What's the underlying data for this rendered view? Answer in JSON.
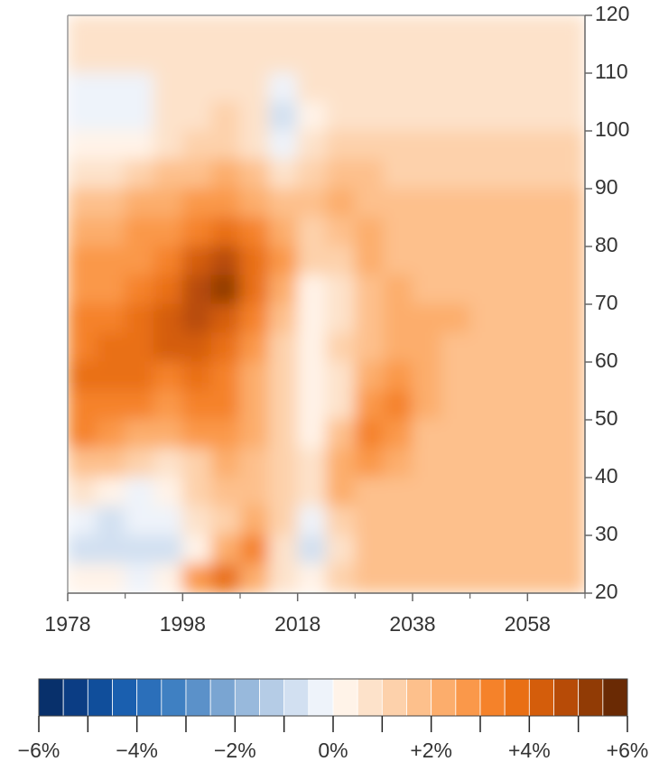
{
  "chart_data": {
    "type": "contour",
    "x": [
      1980.5,
      1985.5,
      1990.5,
      1995.5,
      2000.5,
      2005.5,
      2010.5,
      2015.5,
      2020.5,
      2025.5,
      2030.5,
      2035.5,
      2040.5,
      2045.5,
      2050.5,
      2055.5,
      2060.5,
      2065.5
    ],
    "y": [
      117.5,
      112.5,
      107.5,
      102.5,
      97.5,
      92.5,
      87.5,
      82.5,
      77.5,
      72.5,
      67.5,
      62.5,
      57.5,
      52.5,
      47.5,
      42.5,
      37.5,
      32.5,
      27.5,
      22.5
    ],
    "z": [
      [
        0.7,
        0.7,
        0.7,
        0.7,
        0.7,
        0.7,
        0.7,
        0.7,
        0.7,
        0.7,
        0.7,
        0.7,
        0.7,
        0.7,
        0.7,
        0.7,
        0.7,
        0.7
      ],
      [
        0.7,
        0.7,
        0.7,
        0.7,
        0.7,
        0.7,
        0.7,
        0.7,
        0.7,
        0.7,
        0.7,
        0.7,
        0.7,
        0.7,
        0.7,
        0.7,
        0.7,
        0.7
      ],
      [
        -0.3,
        -0.3,
        -0.3,
        0.6,
        0.7,
        0.7,
        0.7,
        -0.3,
        0.7,
        0.7,
        0.7,
        0.7,
        0.7,
        0.7,
        0.7,
        0.7,
        0.7,
        0.7
      ],
      [
        -0.3,
        -0.3,
        -0.3,
        0.5,
        0.7,
        1.2,
        0.8,
        -0.8,
        0.4,
        0.7,
        0.7,
        0.7,
        0.7,
        0.7,
        0.7,
        0.7,
        0.7,
        0.7
      ],
      [
        0.2,
        0.2,
        0.3,
        0.5,
        1.2,
        1.4,
        0.9,
        -0.2,
        0.9,
        1.2,
        1.2,
        1.2,
        1.2,
        1.2,
        1.2,
        1.2,
        1.2,
        1.2
      ],
      [
        0.5,
        0.7,
        1.2,
        1.5,
        1.8,
        2.0,
        1.6,
        0.8,
        1.3,
        1.7,
        1.5,
        1.4,
        1.3,
        1.2,
        1.2,
        1.2,
        1.2,
        1.2
      ],
      [
        1.6,
        1.8,
        2.0,
        2.3,
        2.6,
        2.8,
        2.4,
        1.6,
        1.5,
        2.0,
        1.7,
        1.5,
        1.7,
        1.7,
        1.7,
        1.7,
        1.7,
        1.7
      ],
      [
        2.0,
        2.2,
        2.5,
        2.8,
        3.3,
        3.6,
        3.0,
        2.2,
        1.4,
        1.6,
        2.1,
        1.7,
        1.7,
        1.7,
        1.7,
        1.7,
        1.7,
        1.7
      ],
      [
        2.6,
        2.7,
        2.9,
        3.3,
        4.2,
        4.6,
        3.6,
        2.6,
        1.0,
        1.2,
        2.2,
        1.8,
        1.7,
        1.7,
        1.7,
        1.7,
        1.7,
        1.7
      ],
      [
        2.8,
        2.9,
        3.1,
        3.6,
        4.6,
        5.1,
        3.6,
        2.4,
        0.3,
        0.6,
        1.8,
        2.0,
        1.8,
        1.9,
        1.7,
        1.7,
        1.7,
        1.7
      ],
      [
        3.0,
        3.2,
        3.5,
        4.0,
        4.7,
        4.4,
        3.2,
        1.8,
        0.2,
        0.6,
        1.6,
        2.2,
        2.2,
        2.1,
        1.7,
        1.7,
        1.7,
        1.7
      ],
      [
        3.2,
        3.5,
        3.8,
        4.2,
        4.3,
        3.8,
        2.8,
        1.2,
        0.3,
        1.0,
        1.8,
        2.4,
        2.3,
        1.9,
        1.7,
        1.7,
        1.7,
        1.7
      ],
      [
        3.6,
        3.8,
        3.6,
        3.4,
        3.6,
        3.4,
        2.4,
        1.0,
        0.2,
        0.6,
        2.0,
        2.7,
        2.4,
        1.8,
        1.7,
        1.7,
        1.7,
        1.7
      ],
      [
        3.4,
        3.3,
        3.0,
        2.6,
        3.2,
        3.0,
        2.2,
        1.2,
        0.2,
        0.8,
        2.6,
        3.2,
        2.2,
        1.7,
        1.7,
        1.7,
        1.7,
        1.7
      ],
      [
        3.0,
        2.6,
        2.2,
        2.0,
        2.6,
        2.6,
        2.0,
        1.2,
        0.4,
        1.8,
        3.2,
        2.8,
        1.9,
        1.7,
        1.7,
        1.7,
        1.7,
        1.7
      ],
      [
        1.8,
        1.6,
        1.0,
        0.5,
        1.4,
        2.0,
        1.8,
        1.0,
        0.6,
        2.2,
        2.7,
        2.2,
        1.7,
        1.7,
        1.7,
        1.7,
        1.7,
        1.7
      ],
      [
        0.6,
        0.3,
        -0.2,
        0.3,
        1.0,
        1.6,
        1.8,
        1.2,
        0.9,
        2.0,
        1.9,
        1.7,
        1.7,
        1.7,
        1.7,
        1.7,
        1.7,
        1.7
      ],
      [
        -0.3,
        -0.8,
        -0.5,
        -0.3,
        0.5,
        1.4,
        2.2,
        1.0,
        -0.3,
        1.2,
        1.6,
        1.7,
        1.7,
        1.7,
        1.7,
        1.7,
        1.7,
        1.7
      ],
      [
        -0.6,
        -0.6,
        -0.8,
        -0.9,
        0.2,
        2.2,
        3.0,
        0.8,
        -0.8,
        0.8,
        1.6,
        1.7,
        1.7,
        1.7,
        1.7,
        1.7,
        1.7,
        1.7
      ],
      [
        0.2,
        0.0,
        -0.2,
        0.3,
        2.6,
        3.6,
        2.2,
        0.6,
        0.2,
        1.0,
        1.6,
        1.7,
        1.7,
        1.7,
        1.7,
        1.7,
        1.7,
        1.7
      ]
    ],
    "xlim": [
      1978,
      2068
    ],
    "ylim": [
      20,
      120
    ],
    "xticks": [
      1978,
      1998,
      2018,
      2038,
      2058
    ],
    "xminor": [
      1988,
      2008,
      2028,
      2048,
      2068
    ],
    "yticks": [
      20,
      30,
      40,
      50,
      60,
      70,
      80,
      90,
      100,
      110,
      120
    ],
    "clim": [
      -6,
      6
    ],
    "colors": [
      "#08306b",
      "#0b3d84",
      "#104e9b",
      "#1a5faf",
      "#2b6fba",
      "#3f80c2",
      "#5b91c9",
      "#7aa5d2",
      "#98b9dc",
      "#b5cce6",
      "#d2e0f1",
      "#eef3fa",
      "#fff3e8",
      "#fde2ca",
      "#fdd1ab",
      "#fdc08c",
      "#fcad6c",
      "#fa984a",
      "#f5822a",
      "#e96f14",
      "#d45d0b",
      "#b74b07",
      "#913b05",
      "#6a2a04"
    ],
    "colorbar_ticks": [
      -6,
      -5,
      -4,
      -3,
      -2,
      -1,
      0,
      1,
      2,
      3,
      4,
      5,
      6
    ],
    "colorbar_labels": [
      {
        "value": -6,
        "label": "−6%"
      },
      {
        "value": -4,
        "label": "−4%"
      },
      {
        "value": -2,
        "label": "−2%"
      },
      {
        "value": 0,
        "label": "0%"
      },
      {
        "value": 2,
        "label": "+2%"
      },
      {
        "value": 4,
        "label": "+4%"
      },
      {
        "value": 6,
        "label": "+6%"
      }
    ]
  }
}
